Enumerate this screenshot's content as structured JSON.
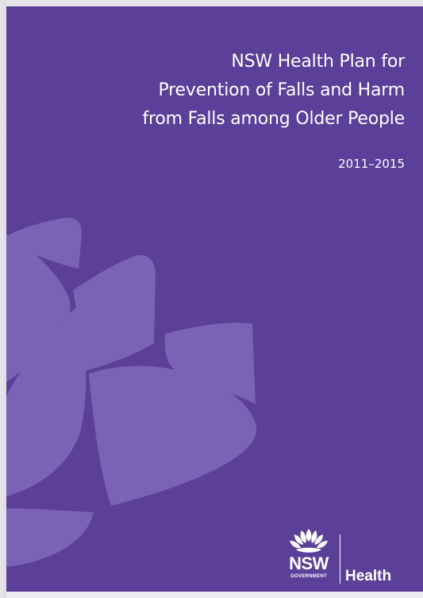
{
  "cover": {
    "title_lines": [
      "NSW Health Plan for",
      "Prevention of Falls and Harm",
      "from Falls among Older People"
    ],
    "years": "2011–2015",
    "background_color": "#5b3f98",
    "waratah_color": "#7b62b4"
  },
  "logo": {
    "icon": "waratah-icon",
    "nsw": "NSW",
    "government": "GOVERNMENT",
    "health": "Health"
  }
}
